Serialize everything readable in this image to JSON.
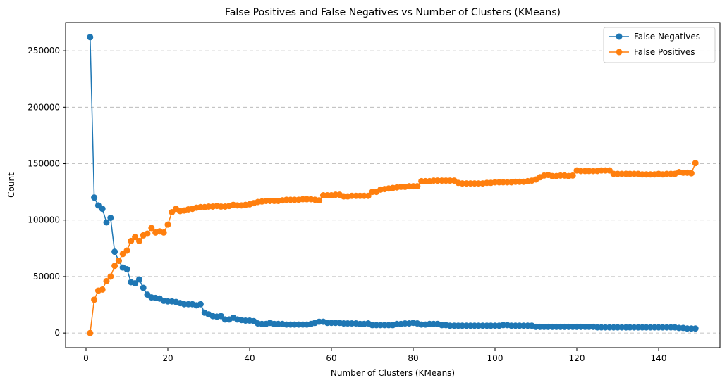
{
  "chart_data": {
    "type": "line",
    "title": "False Positives and False Negatives vs Number of Clusters (KMeans)",
    "xlabel": "Number of Clusters (KMeans)",
    "ylabel": "Count",
    "xlim": [
      -5,
      155
    ],
    "ylim": [
      -13000,
      275000
    ],
    "x_ticks": [
      0,
      20,
      40,
      60,
      80,
      100,
      120,
      140
    ],
    "y_ticks": [
      0,
      50000,
      100000,
      150000,
      200000,
      250000
    ],
    "grid": "horizontal dashed",
    "legend_position": "top-right",
    "x": [
      1,
      2,
      3,
      4,
      5,
      6,
      7,
      8,
      9,
      10,
      11,
      12,
      13,
      14,
      15,
      16,
      17,
      18,
      19,
      20,
      21,
      22,
      23,
      24,
      25,
      26,
      27,
      28,
      29,
      30,
      31,
      32,
      33,
      34,
      35,
      36,
      37,
      38,
      39,
      40,
      41,
      42,
      43,
      44,
      45,
      46,
      47,
      48,
      49,
      50,
      51,
      52,
      53,
      54,
      55,
      56,
      57,
      58,
      59,
      60,
      61,
      62,
      63,
      64,
      65,
      66,
      67,
      68,
      69,
      70,
      71,
      72,
      73,
      74,
      75,
      76,
      77,
      78,
      79,
      80,
      81,
      82,
      83,
      84,
      85,
      86,
      87,
      88,
      89,
      90,
      91,
      92,
      93,
      94,
      95,
      96,
      97,
      98,
      99,
      100,
      101,
      102,
      103,
      104,
      105,
      106,
      107,
      108,
      109,
      110,
      111,
      112,
      113,
      114,
      115,
      116,
      117,
      118,
      119,
      120,
      121,
      122,
      123,
      124,
      125,
      126,
      127,
      128,
      129,
      130,
      131,
      132,
      133,
      134,
      135,
      136,
      137,
      138,
      139,
      140,
      141,
      142,
      143,
      144,
      145,
      146,
      147,
      148,
      149
    ],
    "series": [
      {
        "name": "False Negatives",
        "color": "#1f77b4",
        "values": [
          262000,
          120000,
          113000,
          110000,
          98000,
          102000,
          72000,
          64000,
          58000,
          56500,
          45000,
          44000,
          47500,
          40000,
          34000,
          31500,
          31000,
          30500,
          28500,
          28000,
          28000,
          27500,
          26500,
          25500,
          25500,
          25500,
          24500,
          25500,
          18000,
          16500,
          15000,
          14500,
          15000,
          12000,
          12000,
          13500,
          12000,
          11500,
          11000,
          11000,
          10500,
          8500,
          8000,
          8000,
          9000,
          8000,
          8000,
          8000,
          7500,
          7500,
          7500,
          7500,
          7500,
          7500,
          8000,
          9000,
          10000,
          10000,
          9000,
          9000,
          9000,
          9000,
          8500,
          8500,
          8500,
          8500,
          8000,
          8000,
          8500,
          7000,
          7000,
          7000,
          7000,
          7000,
          7000,
          8000,
          8000,
          8500,
          8500,
          9000,
          8500,
          7500,
          7500,
          8000,
          8000,
          8000,
          7000,
          7000,
          6500,
          6500,
          6500,
          6500,
          6500,
          6500,
          6500,
          6500,
          6500,
          6500,
          6500,
          6500,
          6500,
          7000,
          7000,
          6500,
          6500,
          6500,
          6500,
          6500,
          6500,
          5500,
          5500,
          5500,
          5500,
          5500,
          5500,
          5500,
          5500,
          5500,
          5500,
          5500,
          5500,
          5500,
          5500,
          5500,
          5000,
          5000,
          5000,
          5000,
          5000,
          5000,
          5000,
          5000,
          5000,
          5000,
          5000,
          5000,
          5000,
          5000,
          5000,
          5000,
          5000,
          5000,
          5000,
          5000,
          4500,
          4500,
          4000,
          4000,
          4000
        ]
      },
      {
        "name": "False Positives",
        "color": "#ff7f0e",
        "values": [
          0,
          29500,
          37500,
          38500,
          46000,
          50000,
          59500,
          64000,
          70000,
          73000,
          81500,
          85000,
          81500,
          86500,
          88000,
          93000,
          89000,
          90000,
          89000,
          96000,
          107000,
          110000,
          108000,
          108500,
          109500,
          110000,
          111000,
          111500,
          111500,
          112000,
          112000,
          112500,
          112000,
          112000,
          112500,
          113500,
          113000,
          113000,
          113500,
          114000,
          115000,
          116000,
          116500,
          117000,
          117000,
          117000,
          117000,
          117500,
          118000,
          118000,
          118000,
          118000,
          118500,
          118500,
          118500,
          118000,
          117500,
          122000,
          122000,
          122000,
          122500,
          122500,
          121000,
          121000,
          121500,
          121500,
          121500,
          121500,
          121500,
          125000,
          125000,
          127000,
          127500,
          128000,
          128500,
          129000,
          129500,
          129500,
          130000,
          130000,
          130000,
          134500,
          134500,
          134500,
          135000,
          135000,
          135000,
          135000,
          135000,
          135000,
          133000,
          132500,
          132500,
          132500,
          132500,
          132500,
          132500,
          133000,
          133000,
          133500,
          133500,
          133500,
          133500,
          133500,
          134000,
          134000,
          134000,
          134500,
          135000,
          136000,
          138000,
          139500,
          140000,
          139000,
          139000,
          139500,
          139500,
          139000,
          139500,
          144000,
          143500,
          143500,
          143500,
          143500,
          143500,
          144000,
          144000,
          144000,
          141000,
          141000,
          141000,
          141000,
          141000,
          141000,
          141000,
          140500,
          140500,
          140500,
          140500,
          141000,
          140500,
          141000,
          141000,
          141000,
          142500,
          142000,
          142000,
          141500,
          150500
        ]
      }
    ]
  }
}
